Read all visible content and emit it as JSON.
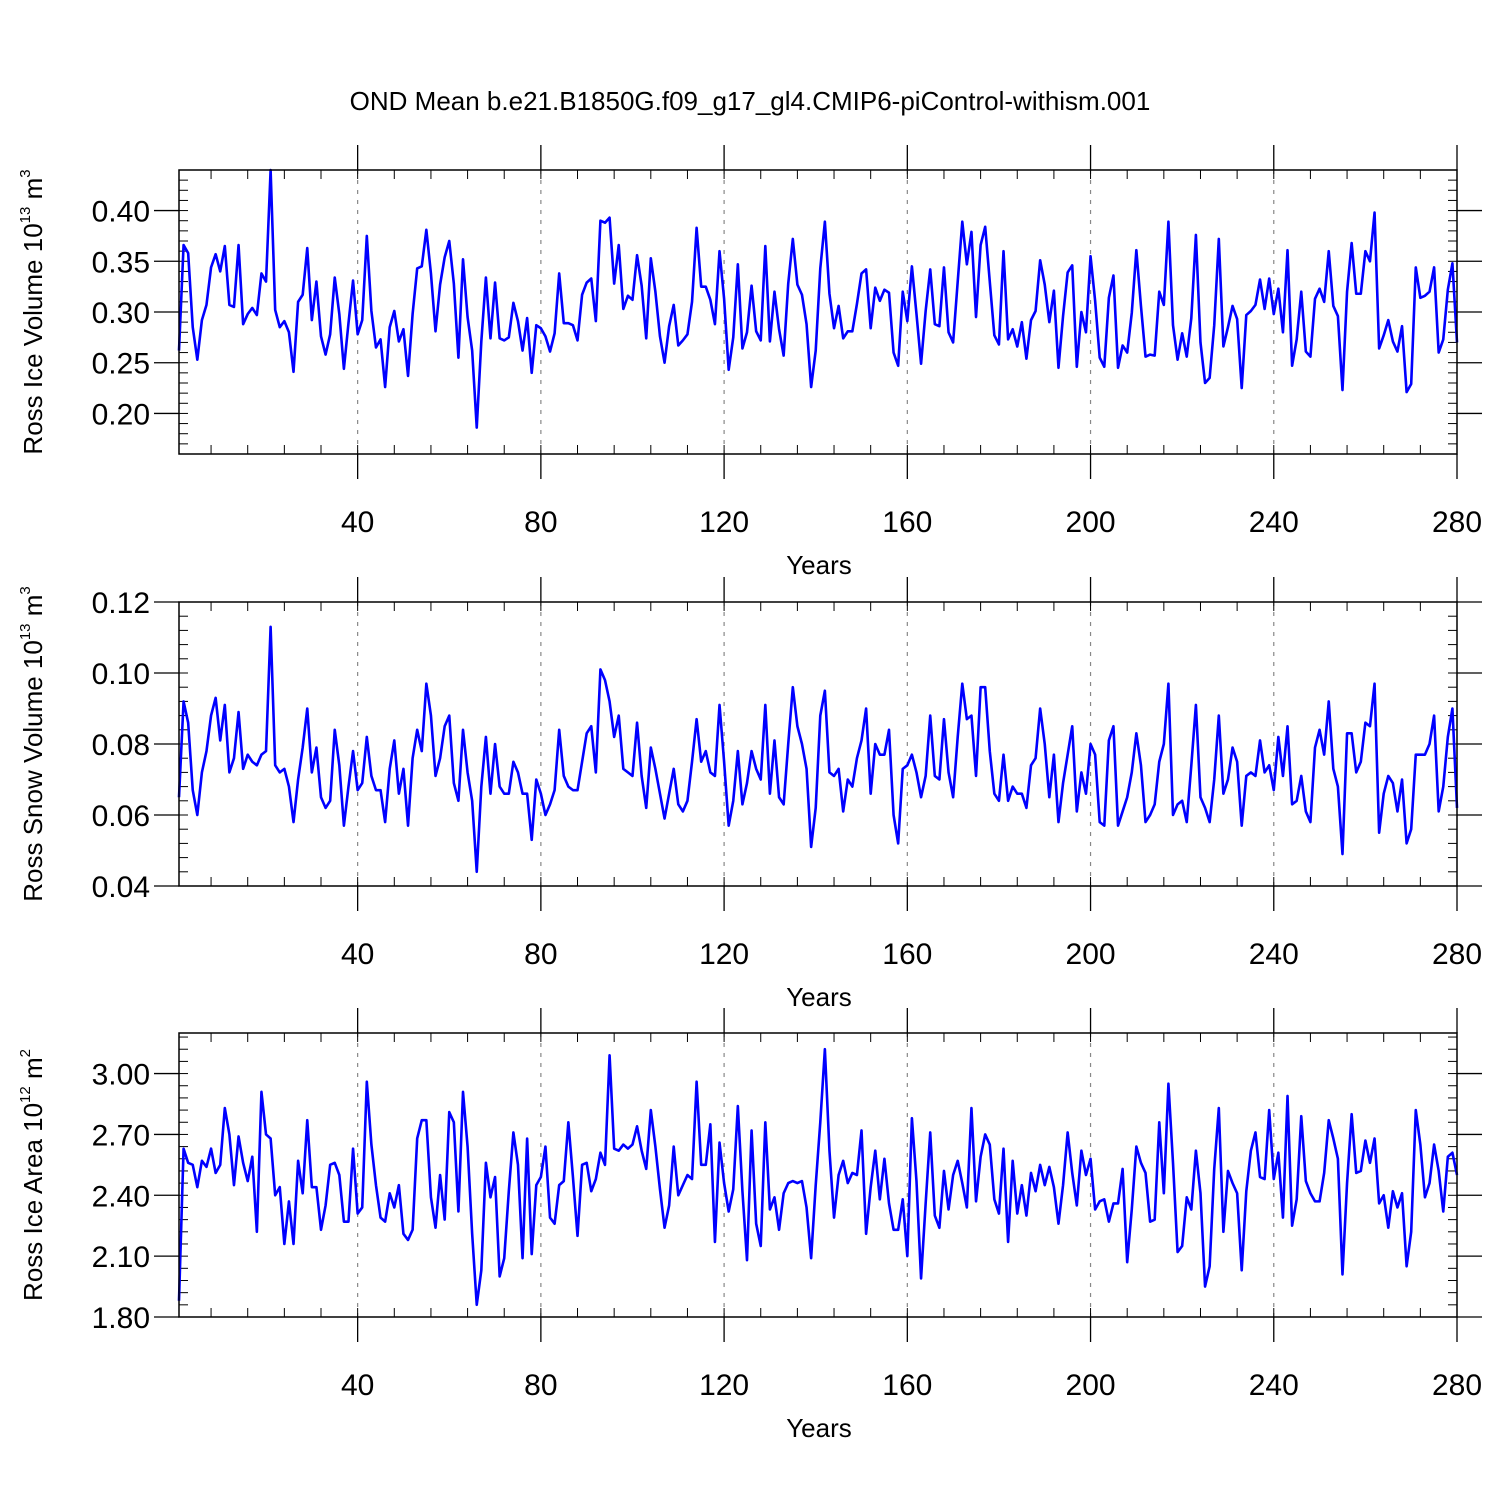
{
  "figure": {
    "title": "OND Mean b.e21.B1850G.f09_g17_gl4.CMIP6-piControl-withism.001"
  },
  "chart_data": [
    {
      "type": "line",
      "title": "OND Mean b.e21.B1850G.f09_g17_gl4.CMIP6-piControl-withism.001",
      "xlabel": "Years",
      "ylabel": "Ross Ice Volume 10^13 m^3",
      "ylabel_parts": {
        "base": "Ross Ice Volume 10",
        "exp": "13",
        "unit": " m",
        "unit_exp": "3"
      },
      "xlim": [
        1,
        280
      ],
      "ylim": [
        0.16,
        0.44
      ],
      "x_ticks": [
        "40",
        "80",
        "120",
        "160",
        "200",
        "240",
        "280"
      ],
      "y_ticks": [
        "0.20",
        "0.25",
        "0.30",
        "0.35",
        "0.40"
      ],
      "grid": "dashed vertical lines at 40, 80, 120, 160, 200, 240",
      "color": "#0000ff",
      "series": [
        {
          "x_start": 1,
          "values": [
            0.262,
            0.366,
            0.358,
            0.285,
            0.253,
            0.292,
            0.307,
            0.344,
            0.357,
            0.34,
            0.365,
            0.307,
            0.305,
            0.366,
            0.288,
            0.298,
            0.304,
            0.297,
            0.338,
            0.33,
            0.44,
            0.302,
            0.285,
            0.291,
            0.28,
            0.241,
            0.31,
            0.317,
            0.363,
            0.292,
            0.33,
            0.276,
            0.258,
            0.278,
            0.334,
            0.298,
            0.244,
            0.289,
            0.331,
            0.278,
            0.292,
            0.375,
            0.301,
            0.265,
            0.273,
            0.226,
            0.285,
            0.301,
            0.271,
            0.283,
            0.237,
            0.298,
            0.343,
            0.345,
            0.381,
            0.338,
            0.281,
            0.327,
            0.354,
            0.37,
            0.328,
            0.255,
            0.352,
            0.295,
            0.262,
            0.186,
            0.271,
            0.334,
            0.274,
            0.329,
            0.274,
            0.272,
            0.275,
            0.309,
            0.291,
            0.262,
            0.294,
            0.24,
            0.287,
            0.284,
            0.276,
            0.261,
            0.279,
            0.338,
            0.289,
            0.289,
            0.287,
            0.272,
            0.317,
            0.329,
            0.333,
            0.291,
            0.39,
            0.388,
            0.393,
            0.328,
            0.366,
            0.303,
            0.316,
            0.312,
            0.356,
            0.326,
            0.274,
            0.353,
            0.32,
            0.276,
            0.25,
            0.286,
            0.307,
            0.267,
            0.272,
            0.278,
            0.31,
            0.383,
            0.325,
            0.325,
            0.312,
            0.288,
            0.36,
            0.313,
            0.243,
            0.275,
            0.347,
            0.264,
            0.28,
            0.326,
            0.281,
            0.272,
            0.365,
            0.271,
            0.32,
            0.283,
            0.257,
            0.328,
            0.372,
            0.327,
            0.317,
            0.288,
            0.226,
            0.262,
            0.343,
            0.389,
            0.318,
            0.284,
            0.306,
            0.274,
            0.281,
            0.281,
            0.308,
            0.338,
            0.342,
            0.284,
            0.324,
            0.311,
            0.322,
            0.319,
            0.26,
            0.247,
            0.32,
            0.291,
            0.345,
            0.298,
            0.249,
            0.301,
            0.342,
            0.288,
            0.286,
            0.344,
            0.28,
            0.27,
            0.33,
            0.389,
            0.347,
            0.379,
            0.295,
            0.366,
            0.384,
            0.33,
            0.277,
            0.268,
            0.36,
            0.273,
            0.283,
            0.266,
            0.29,
            0.254,
            0.292,
            0.301,
            0.351,
            0.327,
            0.29,
            0.321,
            0.245,
            0.296,
            0.339,
            0.346,
            0.246,
            0.3,
            0.28,
            0.355,
            0.311,
            0.255,
            0.246,
            0.314,
            0.336,
            0.245,
            0.267,
            0.26,
            0.299,
            0.361,
            0.306,
            0.256,
            0.258,
            0.257,
            0.32,
            0.307,
            0.389,
            0.287,
            0.253,
            0.279,
            0.256,
            0.294,
            0.376,
            0.27,
            0.23,
            0.235,
            0.287,
            0.372,
            0.266,
            0.285,
            0.306,
            0.293,
            0.225,
            0.297,
            0.301,
            0.307,
            0.332,
            0.303,
            0.333,
            0.298,
            0.323,
            0.28,
            0.361,
            0.247,
            0.273,
            0.32,
            0.261,
            0.256,
            0.313,
            0.323,
            0.31,
            0.36,
            0.306,
            0.296,
            0.223,
            0.32,
            0.368,
            0.318,
            0.318,
            0.36,
            0.35,
            0.398,
            0.264,
            0.277,
            0.292,
            0.271,
            0.261,
            0.286,
            0.221,
            0.229,
            0.344,
            0.314,
            0.316,
            0.32,
            0.344,
            0.26,
            0.273,
            0.322,
            0.348,
            0.27
          ]
        }
      ]
    },
    {
      "type": "line",
      "xlabel": "Years",
      "ylabel": "Ross Snow Volume 10^13 m^3",
      "ylabel_parts": {
        "base": "Ross Snow Volume 10",
        "exp": "13",
        "unit": " m",
        "unit_exp": "3"
      },
      "xlim": [
        1,
        280
      ],
      "ylim": [
        0.04,
        0.12
      ],
      "x_ticks": [
        "40",
        "80",
        "120",
        "160",
        "200",
        "240",
        "280"
      ],
      "y_ticks": [
        "0.04",
        "0.06",
        "0.08",
        "0.10",
        "0.12"
      ],
      "grid": "dashed vertical lines at 40, 80, 120, 160, 200, 240",
      "color": "#0000ff",
      "series": [
        {
          "x_start": 1,
          "values": [
            0.065,
            0.092,
            0.086,
            0.067,
            0.06,
            0.072,
            0.078,
            0.088,
            0.093,
            0.081,
            0.091,
            0.072,
            0.076,
            0.089,
            0.073,
            0.077,
            0.075,
            0.074,
            0.077,
            0.078,
            0.113,
            0.074,
            0.072,
            0.073,
            0.068,
            0.058,
            0.07,
            0.079,
            0.09,
            0.072,
            0.079,
            0.065,
            0.062,
            0.064,
            0.084,
            0.074,
            0.057,
            0.068,
            0.078,
            0.067,
            0.069,
            0.082,
            0.071,
            0.067,
            0.067,
            0.058,
            0.073,
            0.081,
            0.066,
            0.073,
            0.057,
            0.076,
            0.084,
            0.078,
            0.097,
            0.088,
            0.071,
            0.076,
            0.085,
            0.088,
            0.069,
            0.064,
            0.084,
            0.072,
            0.064,
            0.044,
            0.068,
            0.082,
            0.066,
            0.08,
            0.068,
            0.066,
            0.066,
            0.075,
            0.072,
            0.066,
            0.066,
            0.053,
            0.07,
            0.066,
            0.06,
            0.063,
            0.067,
            0.084,
            0.071,
            0.068,
            0.067,
            0.067,
            0.075,
            0.083,
            0.085,
            0.072,
            0.101,
            0.098,
            0.092,
            0.082,
            0.088,
            0.073,
            0.072,
            0.071,
            0.086,
            0.071,
            0.062,
            0.079,
            0.073,
            0.066,
            0.059,
            0.066,
            0.073,
            0.063,
            0.061,
            0.064,
            0.075,
            0.087,
            0.075,
            0.078,
            0.072,
            0.071,
            0.091,
            0.075,
            0.057,
            0.064,
            0.078,
            0.063,
            0.069,
            0.078,
            0.073,
            0.07,
            0.091,
            0.066,
            0.081,
            0.065,
            0.063,
            0.08,
            0.096,
            0.085,
            0.08,
            0.073,
            0.051,
            0.062,
            0.088,
            0.095,
            0.072,
            0.071,
            0.073,
            0.061,
            0.07,
            0.068,
            0.076,
            0.081,
            0.09,
            0.066,
            0.08,
            0.077,
            0.077,
            0.084,
            0.06,
            0.052,
            0.073,
            0.074,
            0.077,
            0.072,
            0.065,
            0.071,
            0.088,
            0.071,
            0.07,
            0.087,
            0.072,
            0.065,
            0.082,
            0.097,
            0.087,
            0.088,
            0.071,
            0.096,
            0.096,
            0.078,
            0.066,
            0.064,
            0.077,
            0.064,
            0.068,
            0.066,
            0.066,
            0.062,
            0.074,
            0.076,
            0.09,
            0.08,
            0.065,
            0.077,
            0.058,
            0.069,
            0.077,
            0.085,
            0.061,
            0.072,
            0.066,
            0.08,
            0.077,
            0.058,
            0.057,
            0.081,
            0.085,
            0.057,
            0.061,
            0.065,
            0.072,
            0.083,
            0.074,
            0.058,
            0.06,
            0.063,
            0.075,
            0.08,
            0.097,
            0.06,
            0.063,
            0.064,
            0.058,
            0.074,
            0.091,
            0.065,
            0.062,
            0.058,
            0.07,
            0.088,
            0.066,
            0.07,
            0.079,
            0.075,
            0.057,
            0.071,
            0.072,
            0.071,
            0.081,
            0.072,
            0.074,
            0.067,
            0.082,
            0.071,
            0.085,
            0.063,
            0.064,
            0.071,
            0.061,
            0.058,
            0.079,
            0.084,
            0.077,
            0.092,
            0.073,
            0.068,
            0.049,
            0.083,
            0.083,
            0.072,
            0.075,
            0.086,
            0.085,
            0.097,
            0.055,
            0.066,
            0.071,
            0.069,
            0.061,
            0.07,
            0.052,
            0.056,
            0.077,
            0.077,
            0.077,
            0.08,
            0.088,
            0.061,
            0.068,
            0.082,
            0.09,
            0.062
          ]
        }
      ]
    },
    {
      "type": "line",
      "xlabel": "Years",
      "ylabel": "Ross Ice Area 10^12 m^2",
      "ylabel_parts": {
        "base": "Ross Ice Area 10",
        "exp": "12",
        "unit": " m",
        "unit_exp": "2"
      },
      "xlim": [
        1,
        280
      ],
      "ylim": [
        1.8,
        3.2
      ],
      "x_ticks": [
        "40",
        "80",
        "120",
        "160",
        "200",
        "240",
        "280"
      ],
      "y_ticks": [
        "1.80",
        "2.10",
        "2.40",
        "2.70",
        "3.00"
      ],
      "grid": "dashed vertical lines at 40, 80, 120, 160, 200, 240",
      "color": "#0000ff",
      "series": [
        {
          "x_start": 1,
          "values": [
            1.88,
            2.63,
            2.56,
            2.55,
            2.44,
            2.57,
            2.54,
            2.63,
            2.51,
            2.55,
            2.83,
            2.7,
            2.45,
            2.69,
            2.56,
            2.47,
            2.59,
            2.22,
            2.91,
            2.7,
            2.68,
            2.4,
            2.44,
            2.16,
            2.37,
            2.16,
            2.57,
            2.41,
            2.77,
            2.44,
            2.44,
            2.23,
            2.35,
            2.55,
            2.56,
            2.5,
            2.27,
            2.27,
            2.63,
            2.31,
            2.34,
            2.96,
            2.65,
            2.45,
            2.29,
            2.27,
            2.41,
            2.34,
            2.45,
            2.21,
            2.18,
            2.23,
            2.68,
            2.77,
            2.77,
            2.39,
            2.24,
            2.5,
            2.28,
            2.81,
            2.76,
            2.32,
            2.91,
            2.64,
            2.21,
            1.86,
            2.03,
            2.56,
            2.39,
            2.49,
            2.0,
            2.09,
            2.42,
            2.71,
            2.55,
            2.09,
            2.68,
            2.11,
            2.45,
            2.49,
            2.64,
            2.29,
            2.26,
            2.45,
            2.47,
            2.76,
            2.49,
            2.2,
            2.55,
            2.56,
            2.42,
            2.48,
            2.61,
            2.55,
            3.09,
            2.63,
            2.62,
            2.65,
            2.63,
            2.65,
            2.74,
            2.62,
            2.53,
            2.82,
            2.64,
            2.43,
            2.24,
            2.35,
            2.64,
            2.4,
            2.45,
            2.5,
            2.48,
            2.96,
            2.55,
            2.55,
            2.75,
            2.17,
            2.66,
            2.46,
            2.32,
            2.43,
            2.84,
            2.42,
            2.08,
            2.72,
            2.26,
            2.15,
            2.76,
            2.33,
            2.39,
            2.23,
            2.41,
            2.46,
            2.47,
            2.46,
            2.47,
            2.34,
            2.09,
            2.45,
            2.76,
            3.12,
            2.62,
            2.29,
            2.5,
            2.57,
            2.46,
            2.51,
            2.5,
            2.72,
            2.21,
            2.44,
            2.62,
            2.38,
            2.58,
            2.36,
            2.23,
            2.23,
            2.38,
            2.1,
            2.78,
            2.47,
            1.99,
            2.36,
            2.71,
            2.3,
            2.24,
            2.52,
            2.33,
            2.5,
            2.57,
            2.46,
            2.34,
            2.83,
            2.37,
            2.59,
            2.7,
            2.65,
            2.38,
            2.31,
            2.63,
            2.17,
            2.57,
            2.31,
            2.45,
            2.3,
            2.51,
            2.42,
            2.55,
            2.45,
            2.54,
            2.44,
            2.26,
            2.45,
            2.71,
            2.51,
            2.35,
            2.62,
            2.5,
            2.58,
            2.33,
            2.37,
            2.38,
            2.27,
            2.36,
            2.36,
            2.53,
            2.07,
            2.33,
            2.64,
            2.56,
            2.51,
            2.27,
            2.28,
            2.76,
            2.41,
            2.95,
            2.56,
            2.12,
            2.15,
            2.39,
            2.33,
            2.62,
            2.41,
            1.95,
            2.05,
            2.53,
            2.83,
            2.22,
            2.52,
            2.46,
            2.41,
            2.03,
            2.42,
            2.62,
            2.71,
            2.49,
            2.48,
            2.82,
            2.48,
            2.61,
            2.29,
            2.89,
            2.25,
            2.38,
            2.79,
            2.47,
            2.41,
            2.37,
            2.37,
            2.51,
            2.77,
            2.68,
            2.58,
            2.01,
            2.46,
            2.8,
            2.51,
            2.52,
            2.67,
            2.56,
            2.68,
            2.36,
            2.4,
            2.24,
            2.42,
            2.34,
            2.41,
            2.05,
            2.22,
            2.82,
            2.65,
            2.39,
            2.46,
            2.65,
            2.52,
            2.32,
            2.59,
            2.61,
            2.5
          ]
        }
      ]
    }
  ]
}
